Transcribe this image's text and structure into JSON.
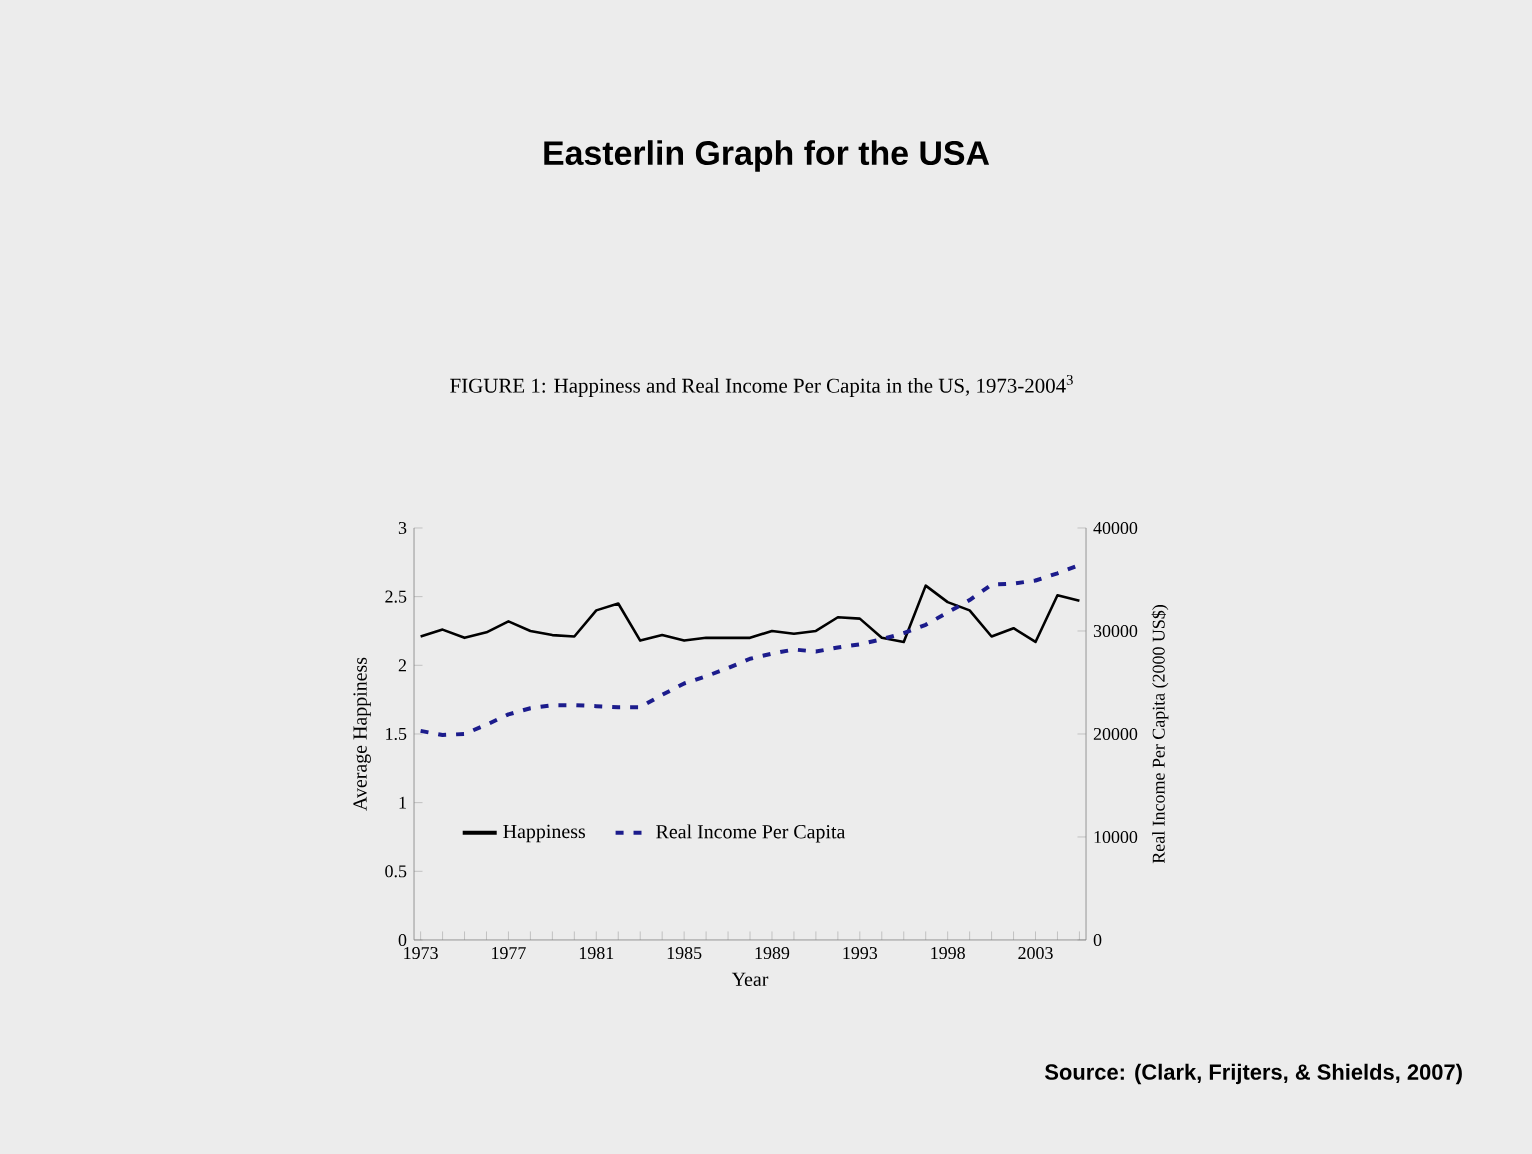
{
  "chart_data": {
    "type": "line",
    "title": "Easterlin Graph for the USA",
    "subtitle": "FIGURE 1: Happiness and Real Income Per Capita in the US, 1973-2004$^{3}$",
    "xlabel": "Year",
    "ylabel": "Average Happiness",
    "y2label": "Real Income Per Capita (2000 US$)",
    "categories": [
      "1973",
      null,
      null,
      null,
      "1977",
      null,
      null,
      null,
      "1981",
      null,
      null,
      null,
      "1985",
      null,
      null,
      null,
      "1989",
      null,
      null,
      null,
      "1993",
      null,
      null,
      null,
      "1998",
      null,
      null,
      null,
      "2003",
      null,
      null
    ],
    "series": [
      {
        "name": "Happiness",
        "color": "#000000",
        "line_style": "solid",
        "values": [
          2.21,
          2.26,
          2.2,
          2.24,
          2.32,
          2.25,
          2.22,
          2.21,
          2.4,
          2.45,
          2.18,
          2.22,
          2.18,
          2.2,
          2.2,
          2.2,
          2.25,
          2.23,
          2.25,
          2.35,
          2.34,
          2.2,
          2.17,
          2.58,
          2.46,
          2.4,
          2.21,
          2.27,
          2.17,
          2.51,
          2.47
        ]
      },
      {
        "name": "Real Income Per Capita",
        "color": "#1c1c8c",
        "line_style": "dashed",
        "axis": "y2",
        "values": [
          20300,
          19900,
          20000,
          20900,
          21900,
          22500,
          22800,
          22800,
          22700,
          22600,
          22600,
          23800,
          24900,
          25600,
          26400,
          27300,
          27800,
          28200,
          28000,
          28400,
          28700,
          29200,
          29800,
          30600,
          31800,
          33000,
          34500,
          34600,
          34900,
          35600,
          36400
        ]
      }
    ],
    "ylim": [
      0,
      3
    ],
    "yticks": [
      0,
      0.5,
      1,
      1.5,
      2,
      2.5,
      3
    ],
    "y2lim": [
      0,
      40000
    ],
    "y2ticks": [
      0,
      10000,
      20000,
      30000,
      40000
    ],
    "legend": "bottom left",
    "annotations": [
      "Source: (Clark, Frijters, & Shields, 2007)"
    ]
  }
}
